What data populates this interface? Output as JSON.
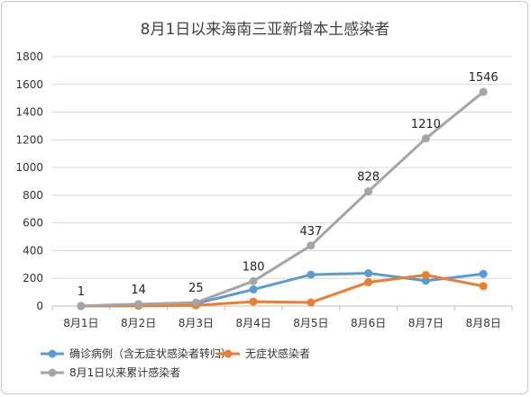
{
  "chart_data": {
    "type": "line",
    "title": "8月1日以来海南三亚新增本土感染者",
    "categories": [
      "8月1日",
      "8月2日",
      "8月3日",
      "8月4日",
      "8月5日",
      "8月6日",
      "8月7日",
      "8月8日"
    ],
    "ylim": [
      0,
      1800
    ],
    "yticks": [
      0,
      200,
      400,
      600,
      800,
      1000,
      1200,
      1400,
      1600,
      1800
    ],
    "grid": true,
    "legend_position": "bottom-left",
    "series": [
      {
        "name": "确诊病例（含无症状感染者转归）",
        "color": "#5b9bd5",
        "values": [
          0,
          12,
          18,
          120,
          227,
          237,
          183,
          232
        ]
      },
      {
        "name": "无症状感染者",
        "color": "#ed7d31",
        "values": [
          0,
          2,
          5,
          32,
          26,
          172,
          224,
          144
        ]
      },
      {
        "name": "8月1日以来累计感染者",
        "color": "#a5a5a5",
        "values": [
          1,
          14,
          25,
          180,
          437,
          828,
          1210,
          1546
        ],
        "data_labels": [
          "1",
          "14",
          "25",
          "180",
          "437",
          "828",
          "1210",
          "1546"
        ]
      }
    ]
  }
}
